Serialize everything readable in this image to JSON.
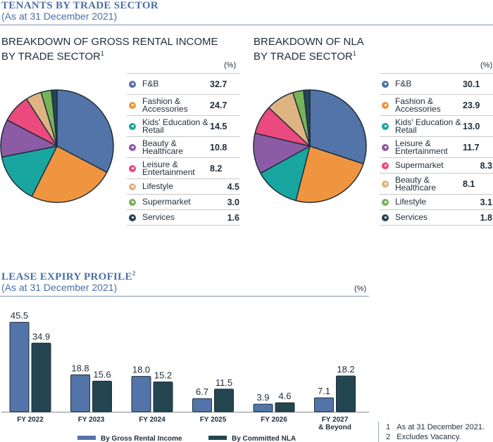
{
  "section1": {
    "title": "TENANTS BY TRADE SECTOR",
    "subtitle": "(As at 31 December 2021)"
  },
  "section2": {
    "title": "LEASE EXPIRY PROFILE",
    "title_sup": "2",
    "subtitle": "(As at 31 December 2021)",
    "unit": "(%)"
  },
  "footnotes": [
    {
      "num": "1",
      "text": "As at 31 December 2021."
    },
    {
      "num": "2",
      "text": "Excludes Vacancy."
    }
  ],
  "chart_data": [
    {
      "type": "pie",
      "title_line1": "BREAKDOWN OF GROSS RENTAL INCOME",
      "title_line2": "BY TRADE SECTOR",
      "title_sup": "1",
      "unit": "(%)",
      "slices": [
        {
          "label": "F&B",
          "value": 32.7,
          "value_label": "32.7",
          "color": "#5374a9"
        },
        {
          "label": "Fashion & Accessories",
          "value": 24.7,
          "value_label": "24.7",
          "color": "#f0953f"
        },
        {
          "label": "Kids' Education & Retail",
          "value": 14.5,
          "value_label": "14.5",
          "color": "#1aa6a0"
        },
        {
          "label": "Beauty & Healthcare",
          "value": 10.8,
          "value_label": "10.8",
          "color": "#8b5ba6"
        },
        {
          "label": "Leisure & Entertainment",
          "value": 8.2,
          "value_label": "8.2",
          "color": "#ea4a7d"
        },
        {
          "label": "Lifestyle",
          "value": 4.5,
          "value_label": "4.5",
          "color": "#dfb483"
        },
        {
          "label": "Supermarket",
          "value": 3.0,
          "value_label": "3.0",
          "color": "#77b359"
        },
        {
          "label": "Services",
          "value": 1.6,
          "value_label": "1.6",
          "color": "#244555"
        }
      ]
    },
    {
      "type": "pie",
      "title_line1": "BREAKDOWN OF NLA",
      "title_line2": "BY TRADE SECTOR",
      "title_sup": "1",
      "unit": "(%)",
      "slices": [
        {
          "label": "F&B",
          "value": 30.1,
          "value_label": "30.1",
          "color": "#5374a9"
        },
        {
          "label": "Fashion & Accessories",
          "value": 23.9,
          "value_label": "23.9",
          "color": "#f0953f"
        },
        {
          "label": "Kids' Education & Retail",
          "value": 13.0,
          "value_label": "13.0",
          "color": "#1aa6a0"
        },
        {
          "label": "Leisure & Entertainment",
          "value": 11.7,
          "value_label": "11.7",
          "color": "#8b5ba6"
        },
        {
          "label": "Supermarket",
          "value": 8.3,
          "value_label": "8.3",
          "color": "#ea4a7d"
        },
        {
          "label": "Beauty & Healthcare",
          "value": 8.1,
          "value_label": "8.1",
          "color": "#dfb483"
        },
        {
          "label": "Lifestyle",
          "value": 3.1,
          "value_label": "3.1",
          "color": "#77b359"
        },
        {
          "label": "Services",
          "value": 1.8,
          "value_label": "1.8",
          "color": "#244555"
        }
      ]
    },
    {
      "type": "bar",
      "categories": [
        "FY 2022",
        "FY 2023",
        "FY 2024",
        "FY 2025",
        "FY 2026",
        "FY 2027 & Beyond"
      ],
      "series": [
        {
          "name": "By Gross Rental Income",
          "values": [
            45.5,
            18.8,
            18.0,
            6.7,
            3.9,
            7.1
          ],
          "labels": [
            "45.5",
            "18.8",
            "18.0",
            "6.7",
            "3.9",
            "7.1"
          ],
          "color": "#5374a9"
        },
        {
          "name": "By Committed NLA",
          "values": [
            34.9,
            15.6,
            15.2,
            11.5,
            4.6,
            18.2
          ],
          "labels": [
            "34.9",
            "15.6",
            "15.2",
            "11.5",
            "4.6",
            "18.2"
          ],
          "color": "#234651"
        }
      ],
      "ylim": [
        0,
        50
      ],
      "grid": false,
      "legend": "bottom"
    }
  ]
}
